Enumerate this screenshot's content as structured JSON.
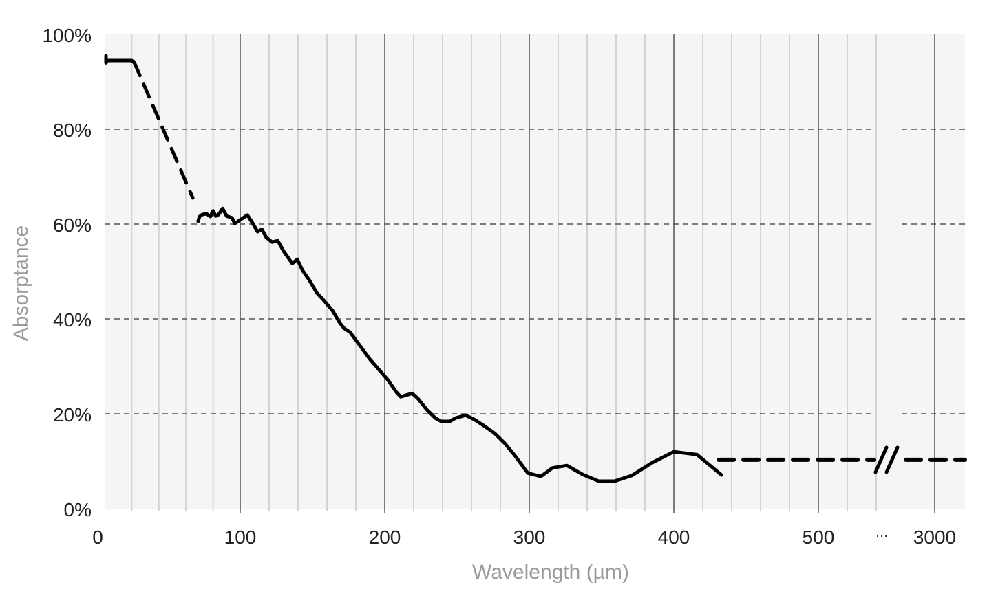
{
  "chart_data": {
    "type": "line",
    "title": "",
    "xlabel": "Wavelength (µm)",
    "ylabel": "Absorptance",
    "xlim": [
      0,
      3020
    ],
    "x_axis_break": [
      545,
      2975
    ],
    "break_tick_label": "···",
    "ylim": [
      0,
      100
    ],
    "x_ticks": [
      0,
      100,
      200,
      300,
      400,
      500,
      3000
    ],
    "x_tick_labels": [
      "0",
      "100",
      "200",
      "300",
      "400",
      "500",
      "3000"
    ],
    "x_minor_step": 20,
    "y_ticks": [
      0,
      20,
      40,
      60,
      80,
      100
    ],
    "y_tick_labels": [
      "0%",
      "20%",
      "40%",
      "60%",
      "80%",
      "100%"
    ],
    "grid": {
      "x": "solid vertical lines (major dark, minor light)",
      "y": "dashed horizontal"
    },
    "colors": {
      "line": "#000000",
      "plot_background": "#f5f5f5",
      "major_grid": "#555555",
      "minor_grid": "#d4d4d4",
      "axis_label": "#9a9a9a"
    },
    "segments": [
      {
        "style": "solid",
        "points": [
          [
            1,
            95.5
          ],
          [
            1,
            94
          ],
          [
            2,
            94.5
          ],
          [
            20,
            94.5
          ],
          [
            22,
            94
          ]
        ]
      },
      {
        "style": "dashed",
        "points": [
          [
            22,
            94
          ],
          [
            65,
            65.5
          ]
        ]
      },
      {
        "style": "solid",
        "points": [
          [
            69,
            60.6
          ],
          [
            70,
            61.6
          ],
          [
            72,
            62
          ],
          [
            75,
            62.2
          ],
          [
            78,
            61.6
          ],
          [
            80,
            62.8
          ],
          [
            82,
            61.7
          ],
          [
            84,
            62
          ],
          [
            87,
            63.3
          ],
          [
            90,
            61.7
          ],
          [
            94,
            61.3
          ],
          [
            96,
            60.1
          ],
          [
            100,
            60.9
          ],
          [
            105,
            61.9
          ],
          [
            109,
            60
          ],
          [
            112,
            58.4
          ],
          [
            115,
            58.9
          ],
          [
            118,
            57.2
          ],
          [
            122,
            56.2
          ],
          [
            126,
            56.5
          ],
          [
            130,
            54.3
          ],
          [
            136,
            51.7
          ],
          [
            139.5,
            52.6
          ],
          [
            143,
            50.3
          ],
          [
            148,
            48.1
          ],
          [
            153,
            45.5
          ],
          [
            157,
            44.2
          ],
          [
            164,
            41.7
          ],
          [
            169,
            39.1
          ],
          [
            172,
            38
          ],
          [
            176,
            37.2
          ],
          [
            183,
            34.3
          ],
          [
            190,
            31.4
          ],
          [
            196,
            29.3
          ],
          [
            202,
            27.2
          ],
          [
            208,
            24.6
          ],
          [
            211,
            23.6
          ],
          [
            219,
            24.3
          ],
          [
            223,
            23.2
          ],
          [
            229,
            20.9
          ],
          [
            235,
            19.1
          ],
          [
            239,
            18.4
          ],
          [
            245,
            18.4
          ],
          [
            249,
            19.1
          ],
          [
            256,
            19.7
          ],
          [
            262,
            18.8
          ],
          [
            269,
            17.4
          ],
          [
            276,
            15.9
          ],
          [
            283,
            13.8
          ],
          [
            290,
            11.2
          ],
          [
            299,
            7.5
          ],
          [
            308,
            6.8
          ],
          [
            316,
            8.6
          ],
          [
            326,
            9.1
          ],
          [
            337,
            7.2
          ],
          [
            348,
            5.8
          ],
          [
            359,
            5.8
          ],
          [
            371,
            7
          ],
          [
            385,
            9.7
          ],
          [
            400,
            12
          ],
          [
            416,
            11.4
          ],
          [
            433,
            7.1
          ]
        ]
      },
      {
        "style": "dashed",
        "points": [
          [
            431,
            10.3
          ],
          [
            3020,
            10.3
          ]
        ]
      }
    ]
  }
}
